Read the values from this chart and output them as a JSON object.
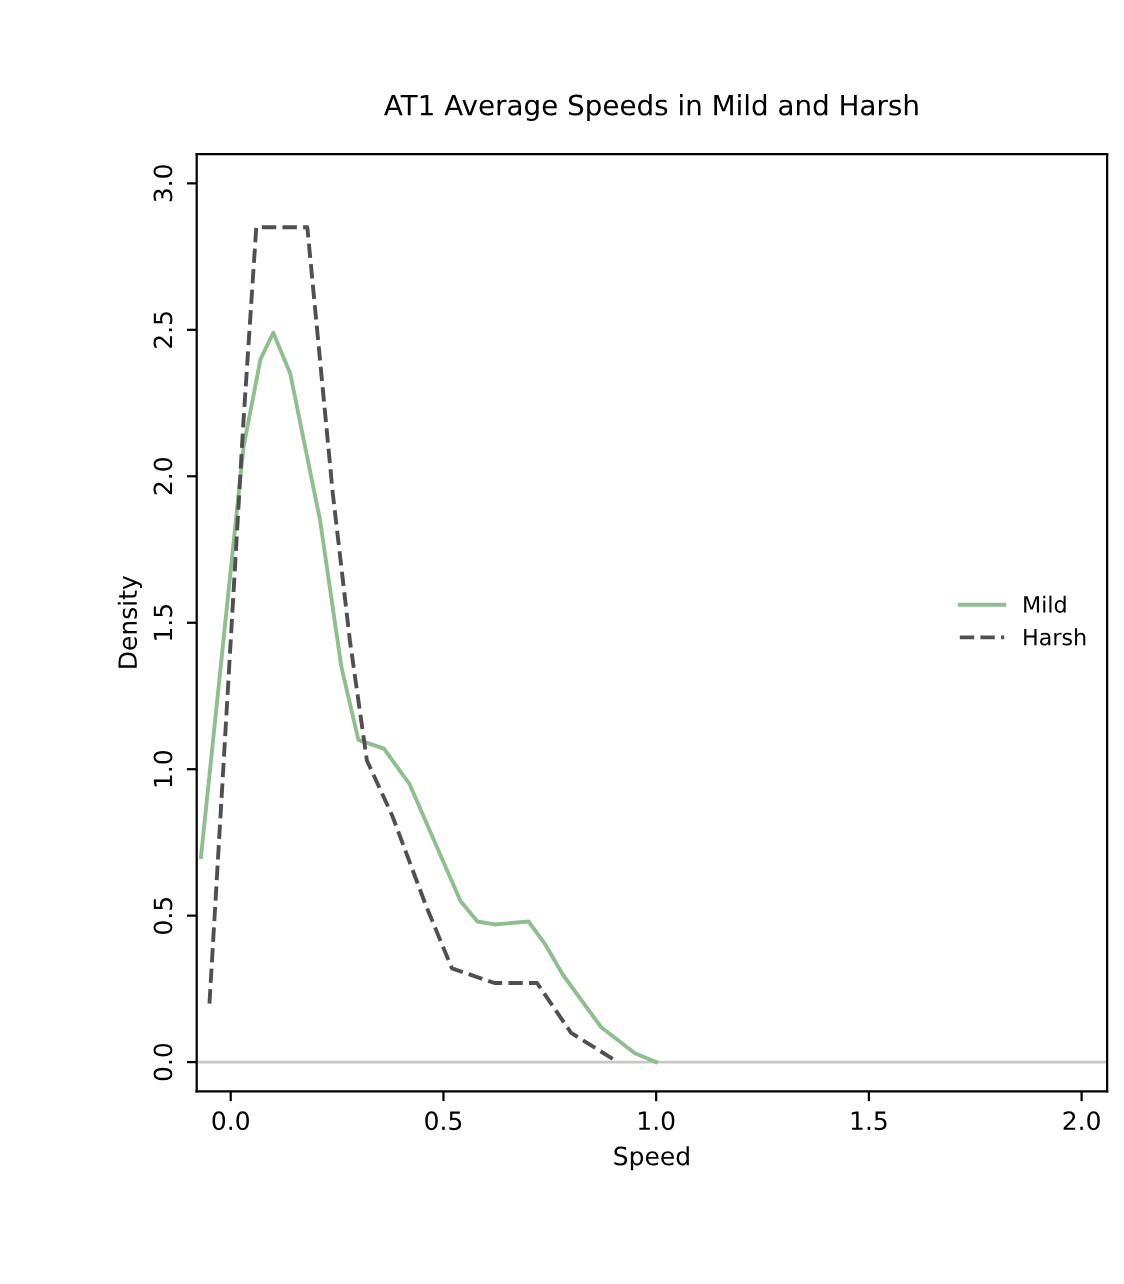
{
  "chart_data": {
    "type": "line",
    "title": "AT1 Average Speeds in Mild and Harsh",
    "xlabel": "Speed",
    "ylabel": "Density",
    "xlim": [
      -0.08,
      2.06
    ],
    "ylim": [
      -0.1,
      3.1
    ],
    "xticks": [
      {
        "value": 0,
        "label": "0.0"
      },
      0.5,
      {
        "value": 1,
        "label": "1.0"
      },
      1.5,
      {
        "value": 2,
        "label": "2.0"
      }
    ],
    "yticks": [
      {
        "value": 0,
        "label": "0.0"
      },
      0.5,
      {
        "value": 1,
        "label": "1.0"
      },
      1.5,
      {
        "value": 2,
        "label": "2.0"
      },
      2.5,
      {
        "value": 3,
        "label": "3.0"
      }
    ],
    "grid": false,
    "legend": "right",
    "ref_lines": [
      {
        "axis": "y",
        "value": 0,
        "color": "#c8c8c8"
      }
    ],
    "series": [
      {
        "name": "Mild",
        "color": "#8fbf8f",
        "line_style": "solid",
        "x": [
          -0.07,
          -0.02,
          0.03,
          0.07,
          0.1,
          0.14,
          0.21,
          0.26,
          0.3,
          0.36,
          0.42,
          0.48,
          0.54,
          0.58,
          0.62,
          0.7,
          0.74,
          0.78,
          0.87,
          0.95,
          1.0
        ],
        "values": [
          0.7,
          1.4,
          2.1,
          2.4,
          2.49,
          2.35,
          1.85,
          1.35,
          1.1,
          1.07,
          0.95,
          0.75,
          0.55,
          0.48,
          0.47,
          0.48,
          0.4,
          0.3,
          0.12,
          0.03,
          0.0
        ]
      },
      {
        "name": "Harsh",
        "color": "#505050",
        "line_style": "dashed",
        "x": [
          -0.05,
          -0.02,
          0.03,
          0.06,
          0.12,
          0.18,
          0.24,
          0.28,
          0.32,
          0.38,
          0.46,
          0.52,
          0.62,
          0.72,
          0.8,
          0.91
        ],
        "values": [
          0.2,
          0.94,
          2.19,
          2.85,
          2.85,
          2.85,
          1.94,
          1.44,
          1.03,
          0.84,
          0.53,
          0.32,
          0.27,
          0.27,
          0.1,
          0.0
        ]
      }
    ]
  }
}
